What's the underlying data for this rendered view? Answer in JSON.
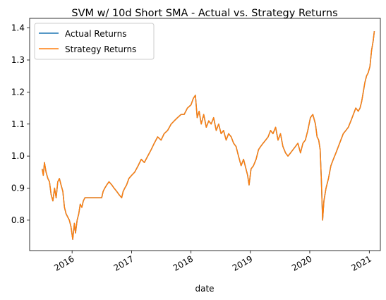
{
  "colors": {
    "actual": "#1f77b4",
    "strategy": "#ff7f0e",
    "axis": "#000000",
    "legend_border": "#cccccc"
  },
  "chart_data": {
    "type": "line",
    "title": "SVM w/ 10d Short SMA - Actual vs. Strategy Returns",
    "xlabel": "date",
    "ylabel": "",
    "x_type": "date",
    "xlim": [
      "2015-04-15",
      "2021-03-10"
    ],
    "ylim": [
      0.705,
      1.43
    ],
    "xticks": [
      {
        "value": "2016-01-01",
        "label": "2016"
      },
      {
        "value": "2017-01-01",
        "label": "2017"
      },
      {
        "value": "2018-01-01",
        "label": "2018"
      },
      {
        "value": "2019-01-01",
        "label": "2019"
      },
      {
        "value": "2020-01-01",
        "label": "2020"
      },
      {
        "value": "2021-01-01",
        "label": "2021"
      }
    ],
    "yticks": [
      0.8,
      0.9,
      1.0,
      1.1,
      1.2,
      1.3,
      1.4
    ],
    "ytick_labels": [
      "0.8",
      "0.9",
      "1.0",
      "1.1",
      "1.2",
      "1.3",
      "1.4"
    ],
    "grid": false,
    "legend": {
      "placement": "top-left"
    },
    "x": [
      "2015-07-01",
      "2015-07-08",
      "2015-07-15",
      "2015-07-25",
      "2015-08-05",
      "2015-08-15",
      "2015-08-25",
      "2015-09-05",
      "2015-09-15",
      "2015-09-25",
      "2015-10-05",
      "2015-10-15",
      "2015-10-25",
      "2015-11-05",
      "2015-11-15",
      "2015-11-25",
      "2015-12-05",
      "2015-12-15",
      "2015-12-25",
      "2016-01-05",
      "2016-01-15",
      "2016-01-22",
      "2016-02-01",
      "2016-02-11",
      "2016-02-20",
      "2016-03-01",
      "2016-03-10",
      "2016-03-20",
      "2016-04-01",
      "2016-04-10",
      "2016-04-20",
      "2016-07-01",
      "2016-07-10",
      "2016-07-20",
      "2016-08-01",
      "2016-08-15",
      "2016-09-01",
      "2016-09-15",
      "2016-10-01",
      "2016-10-15",
      "2016-11-01",
      "2016-11-10",
      "2016-11-20",
      "2016-12-01",
      "2016-12-15",
      "2017-01-01",
      "2017-01-20",
      "2017-02-10",
      "2017-03-01",
      "2017-03-20",
      "2017-04-10",
      "2017-05-01",
      "2017-05-20",
      "2017-06-10",
      "2017-07-01",
      "2017-07-20",
      "2017-08-10",
      "2017-09-01",
      "2017-09-20",
      "2017-10-10",
      "2017-11-01",
      "2017-11-20",
      "2017-12-10",
      "2018-01-01",
      "2018-01-15",
      "2018-01-28",
      "2018-02-08",
      "2018-02-20",
      "2018-03-05",
      "2018-03-20",
      "2018-04-05",
      "2018-04-20",
      "2018-05-05",
      "2018-05-20",
      "2018-06-05",
      "2018-06-20",
      "2018-07-05",
      "2018-07-20",
      "2018-08-05",
      "2018-08-20",
      "2018-09-05",
      "2018-09-20",
      "2018-10-05",
      "2018-10-20",
      "2018-11-05",
      "2018-11-20",
      "2018-12-05",
      "2018-12-15",
      "2018-12-24",
      "2019-01-05",
      "2019-01-20",
      "2019-02-05",
      "2019-02-20",
      "2019-03-05",
      "2019-03-20",
      "2019-04-05",
      "2019-04-20",
      "2019-05-05",
      "2019-05-20",
      "2019-06-05",
      "2019-06-20",
      "2019-07-05",
      "2019-07-20",
      "2019-08-05",
      "2019-08-20",
      "2019-09-05",
      "2019-09-20",
      "2019-10-05",
      "2019-10-20",
      "2019-11-05",
      "2019-11-20",
      "2019-12-05",
      "2019-12-20",
      "2020-01-05",
      "2020-01-20",
      "2020-02-05",
      "2020-02-15",
      "2020-02-25",
      "2020-03-05",
      "2020-03-12",
      "2020-03-20",
      "2020-03-28",
      "2020-04-10",
      "2020-04-25",
      "2020-05-10",
      "2020-05-25",
      "2020-06-10",
      "2020-06-25",
      "2020-07-10",
      "2020-07-25",
      "2020-08-10",
      "2020-08-25",
      "2020-09-10",
      "2020-09-25",
      "2020-10-10",
      "2020-10-25",
      "2020-11-05",
      "2020-11-15",
      "2020-11-25",
      "2020-12-05",
      "2020-12-15",
      "2020-12-25",
      "2021-01-05",
      "2021-01-15",
      "2021-01-25",
      "2021-02-01"
    ],
    "series": [
      {
        "name": "Actual Returns",
        "values": [
          0.96,
          0.94,
          0.98,
          0.95,
          0.93,
          0.92,
          0.88,
          0.86,
          0.9,
          0.87,
          0.92,
          0.93,
          0.91,
          0.89,
          0.84,
          0.82,
          0.81,
          0.8,
          0.78,
          0.74,
          0.79,
          0.76,
          0.8,
          0.82,
          0.85,
          0.84,
          0.86,
          0.87,
          0.87,
          0.87,
          0.87,
          0.87,
          0.89,
          0.9,
          0.91,
          0.92,
          0.91,
          0.9,
          0.89,
          0.88,
          0.87,
          0.89,
          0.9,
          0.91,
          0.93,
          0.94,
          0.95,
          0.97,
          0.99,
          0.98,
          1.0,
          1.02,
          1.04,
          1.06,
          1.05,
          1.07,
          1.08,
          1.1,
          1.11,
          1.12,
          1.13,
          1.13,
          1.15,
          1.16,
          1.18,
          1.19,
          1.12,
          1.14,
          1.1,
          1.13,
          1.09,
          1.11,
          1.1,
          1.12,
          1.08,
          1.1,
          1.07,
          1.08,
          1.05,
          1.07,
          1.06,
          1.04,
          1.03,
          1.0,
          0.97,
          0.99,
          0.96,
          0.94,
          0.91,
          0.96,
          0.97,
          0.99,
          1.02,
          1.03,
          1.04,
          1.05,
          1.06,
          1.08,
          1.07,
          1.09,
          1.05,
          1.07,
          1.03,
          1.01,
          1.0,
          1.01,
          1.02,
          1.03,
          1.04,
          1.01,
          1.04,
          1.05,
          1.08,
          1.12,
          1.13,
          1.1,
          1.06,
          1.05,
          1.02,
          0.93,
          0.8,
          0.86,
          0.9,
          0.93,
          0.97,
          0.99,
          1.01,
          1.03,
          1.05,
          1.07,
          1.08,
          1.09,
          1.11,
          1.13,
          1.15,
          1.14,
          1.15,
          1.17,
          1.2,
          1.23,
          1.25,
          1.26,
          1.28,
          1.33,
          1.36,
          1.39
        ]
      },
      {
        "name": "Strategy Returns",
        "values": [
          0.96,
          0.94,
          0.98,
          0.95,
          0.93,
          0.92,
          0.88,
          0.86,
          0.9,
          0.87,
          0.92,
          0.93,
          0.91,
          0.89,
          0.84,
          0.82,
          0.81,
          0.8,
          0.78,
          0.74,
          0.79,
          0.76,
          0.8,
          0.82,
          0.85,
          0.84,
          0.86,
          0.87,
          0.87,
          0.87,
          0.87,
          0.87,
          0.89,
          0.9,
          0.91,
          0.92,
          0.91,
          0.9,
          0.89,
          0.88,
          0.87,
          0.89,
          0.9,
          0.91,
          0.93,
          0.94,
          0.95,
          0.97,
          0.99,
          0.98,
          1.0,
          1.02,
          1.04,
          1.06,
          1.05,
          1.07,
          1.08,
          1.1,
          1.11,
          1.12,
          1.13,
          1.13,
          1.15,
          1.16,
          1.18,
          1.19,
          1.12,
          1.14,
          1.1,
          1.13,
          1.09,
          1.11,
          1.1,
          1.12,
          1.08,
          1.1,
          1.07,
          1.08,
          1.05,
          1.07,
          1.06,
          1.04,
          1.03,
          1.0,
          0.97,
          0.99,
          0.96,
          0.94,
          0.91,
          0.96,
          0.97,
          0.99,
          1.02,
          1.03,
          1.04,
          1.05,
          1.06,
          1.08,
          1.07,
          1.09,
          1.05,
          1.07,
          1.03,
          1.01,
          1.0,
          1.01,
          1.02,
          1.03,
          1.04,
          1.01,
          1.04,
          1.05,
          1.08,
          1.12,
          1.13,
          1.1,
          1.06,
          1.05,
          1.02,
          0.93,
          0.8,
          0.86,
          0.9,
          0.93,
          0.97,
          0.99,
          1.01,
          1.03,
          1.05,
          1.07,
          1.08,
          1.09,
          1.11,
          1.13,
          1.15,
          1.14,
          1.15,
          1.17,
          1.2,
          1.23,
          1.25,
          1.26,
          1.28,
          1.33,
          1.36,
          1.39
        ]
      }
    ]
  }
}
